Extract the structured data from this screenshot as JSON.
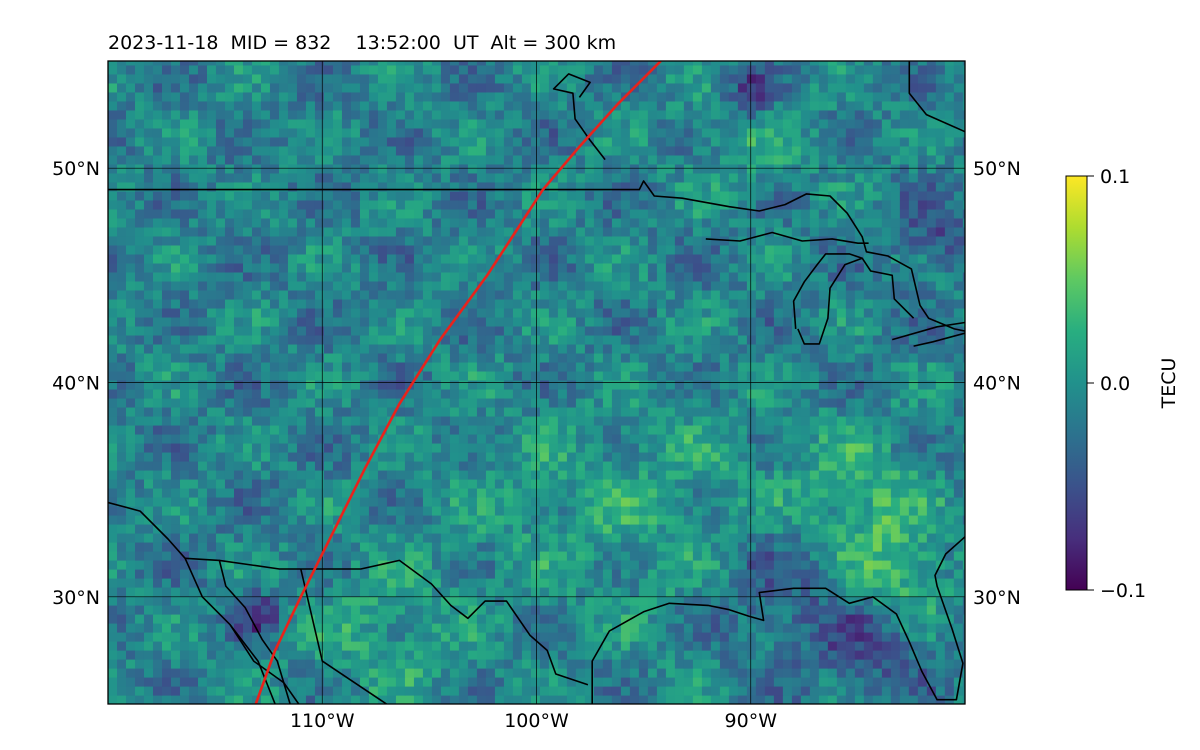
{
  "chart_data": {
    "type": "heatmap",
    "title": "2023-11-18  MID = 832    13:52:00  UT  Alt = 300 km",
    "projection": "plate carree map, longitude -120 to -80, latitude 25 to 55",
    "xlim": [
      -120,
      -80
    ],
    "ylim": [
      25,
      55
    ],
    "grid": true,
    "x_ticks": [
      {
        "value": -110,
        "label": "110°W"
      },
      {
        "value": -100,
        "label": "100°W"
      },
      {
        "value": -90,
        "label": "90°W"
      }
    ],
    "y_ticks": [
      {
        "value": 50,
        "label": "50°N"
      },
      {
        "value": 40,
        "label": "40°N"
      },
      {
        "value": 30,
        "label": "30°N"
      }
    ],
    "colormap": "viridis",
    "colorbar": {
      "label": "TECU",
      "range": [
        -0.1,
        0.1
      ],
      "ticks": [
        {
          "value": 0.1,
          "label": "0.1"
        },
        {
          "value": 0.0,
          "label": "0.0"
        },
        {
          "value": -0.1,
          "label": "−0.1"
        }
      ],
      "position": "right"
    },
    "terminator_line": {
      "color": "#e8231c",
      "points": [
        [
          -113.1,
          25
        ],
        [
          -112.2,
          27.5
        ],
        [
          -111.0,
          30
        ],
        [
          -109.5,
          33
        ],
        [
          -108.0,
          36
        ],
        [
          -106.4,
          39
        ],
        [
          -104.5,
          42
        ],
        [
          -102.3,
          45
        ],
        [
          -101.0,
          47
        ],
        [
          -99.7,
          49
        ],
        [
          -98.0,
          51
        ],
        [
          -96.2,
          53
        ],
        [
          -94.2,
          55
        ]
      ]
    },
    "coastlines": [
      [
        [
          -120,
          34.4
        ],
        [
          -118.5,
          34.0
        ],
        [
          -117.2,
          32.7
        ],
        [
          -116.4,
          31.8
        ],
        [
          -115.6,
          30.0
        ],
        [
          -114.3,
          28.7
        ],
        [
          -113.0,
          27.0
        ],
        [
          -112.2,
          25.0
        ]
      ],
      [
        [
          -116.4,
          31.8
        ],
        [
          -114.8,
          31.7
        ],
        [
          -114.5,
          30.5
        ],
        [
          -113.6,
          29.5
        ],
        [
          -112.8,
          28.0
        ],
        [
          -112.1,
          27.0
        ],
        [
          -111.5,
          25.0
        ]
      ],
      [
        [
          -114.8,
          31.7
        ],
        [
          -112.0,
          31.3
        ],
        [
          -108.2,
          31.3
        ],
        [
          -106.4,
          31.7
        ],
        [
          -104.9,
          30.6
        ],
        [
          -104.0,
          29.6
        ],
        [
          -103.2,
          29.0
        ],
        [
          -102.4,
          29.8
        ],
        [
          -101.4,
          29.8
        ],
        [
          -100.3,
          28.2
        ],
        [
          -99.5,
          27.5
        ],
        [
          -99.1,
          26.4
        ],
        [
          -97.6,
          25.9
        ]
      ],
      [
        [
          -114.3,
          28.7
        ],
        [
          -113.2,
          27.0
        ],
        [
          -111.8,
          26.0
        ],
        [
          -111.1,
          25.0
        ]
      ],
      [
        [
          -111.0,
          31.3
        ],
        [
          -110.0,
          27.0
        ],
        [
          -108.5,
          26.0
        ],
        [
          -107.0,
          25.0
        ]
      ],
      [
        [
          -97.4,
          25.0
        ],
        [
          -97.4,
          27.0
        ],
        [
          -96.6,
          28.4
        ],
        [
          -95.0,
          29.3
        ],
        [
          -93.8,
          29.7
        ],
        [
          -92.0,
          29.6
        ],
        [
          -91.0,
          29.4
        ],
        [
          -90.1,
          29.1
        ],
        [
          -89.4,
          28.9
        ],
        [
          -89.6,
          30.2
        ],
        [
          -88.0,
          30.4
        ],
        [
          -86.5,
          30.4
        ],
        [
          -85.4,
          29.7
        ],
        [
          -84.3,
          30.0
        ],
        [
          -83.2,
          29.2
        ],
        [
          -82.6,
          27.9
        ],
        [
          -82.0,
          26.5
        ],
        [
          -81.3,
          25.2
        ],
        [
          -80.4,
          25.2
        ],
        [
          -80.1,
          26.9
        ],
        [
          -80.6,
          28.5
        ],
        [
          -81.3,
          30.5
        ],
        [
          -81.4,
          31.0
        ],
        [
          -80.9,
          32.0
        ],
        [
          -80.0,
          32.8
        ]
      ],
      [
        [
          -121,
          49.0
        ],
        [
          -95.2,
          49.0
        ],
        [
          -95.0,
          49.4
        ],
        [
          -94.5,
          48.7
        ],
        [
          -93.2,
          48.6
        ],
        [
          -91.0,
          48.2
        ],
        [
          -89.6,
          48.0
        ],
        [
          -88.4,
          48.3
        ],
        [
          -87.4,
          48.8
        ],
        [
          -86.3,
          48.7
        ],
        [
          -85.5,
          47.9
        ],
        [
          -84.8,
          46.8
        ],
        [
          -84.6,
          46.1
        ],
        [
          -83.6,
          45.9
        ],
        [
          -82.5,
          45.3
        ],
        [
          -82.1,
          43.6
        ],
        [
          -81.7,
          43.0
        ],
        [
          -80.5,
          42.5
        ],
        [
          -80.0,
          42.4
        ]
      ],
      [
        [
          -92.1,
          46.7
        ],
        [
          -90.5,
          46.6
        ],
        [
          -89.0,
          47.0
        ],
        [
          -87.6,
          46.6
        ],
        [
          -86.2,
          46.7
        ],
        [
          -85.0,
          46.5
        ],
        [
          -84.5,
          46.5
        ]
      ],
      [
        [
          -87.8,
          42.5
        ],
        [
          -87.5,
          41.8
        ],
        [
          -86.8,
          41.8
        ],
        [
          -86.4,
          43.0
        ],
        [
          -86.3,
          44.4
        ],
        [
          -85.6,
          45.5
        ],
        [
          -84.8,
          45.8
        ],
        [
          -84.4,
          45.2
        ],
        [
          -83.4,
          45.0
        ],
        [
          -83.3,
          43.9
        ],
        [
          -82.4,
          43.0
        ]
      ],
      [
        [
          -87.9,
          42.5
        ],
        [
          -88.0,
          43.8
        ],
        [
          -87.5,
          44.7
        ],
        [
          -86.9,
          45.5
        ],
        [
          -86.5,
          46.0
        ],
        [
          -85.4,
          46.0
        ],
        [
          -84.8,
          45.8
        ]
      ],
      [
        [
          -83.4,
          42.0
        ],
        [
          -81.3,
          42.6
        ],
        [
          -80.0,
          42.8
        ]
      ],
      [
        [
          -82.4,
          41.7
        ],
        [
          -81.5,
          41.9
        ],
        [
          -80.0,
          42.3
        ]
      ],
      [
        [
          -98.0,
          53.3
        ],
        [
          -97.5,
          54.0
        ],
        [
          -98.5,
          54.4
        ],
        [
          -99.2,
          53.7
        ],
        [
          -98.3,
          53.5
        ],
        [
          -98.2,
          52.3
        ],
        [
          -97.5,
          51.3
        ],
        [
          -96.8,
          50.4
        ]
      ],
      [
        [
          -80.0,
          51.7
        ],
        [
          -81.8,
          52.5
        ],
        [
          -82.6,
          53.5
        ],
        [
          -82.6,
          55.0
        ]
      ]
    ]
  }
}
